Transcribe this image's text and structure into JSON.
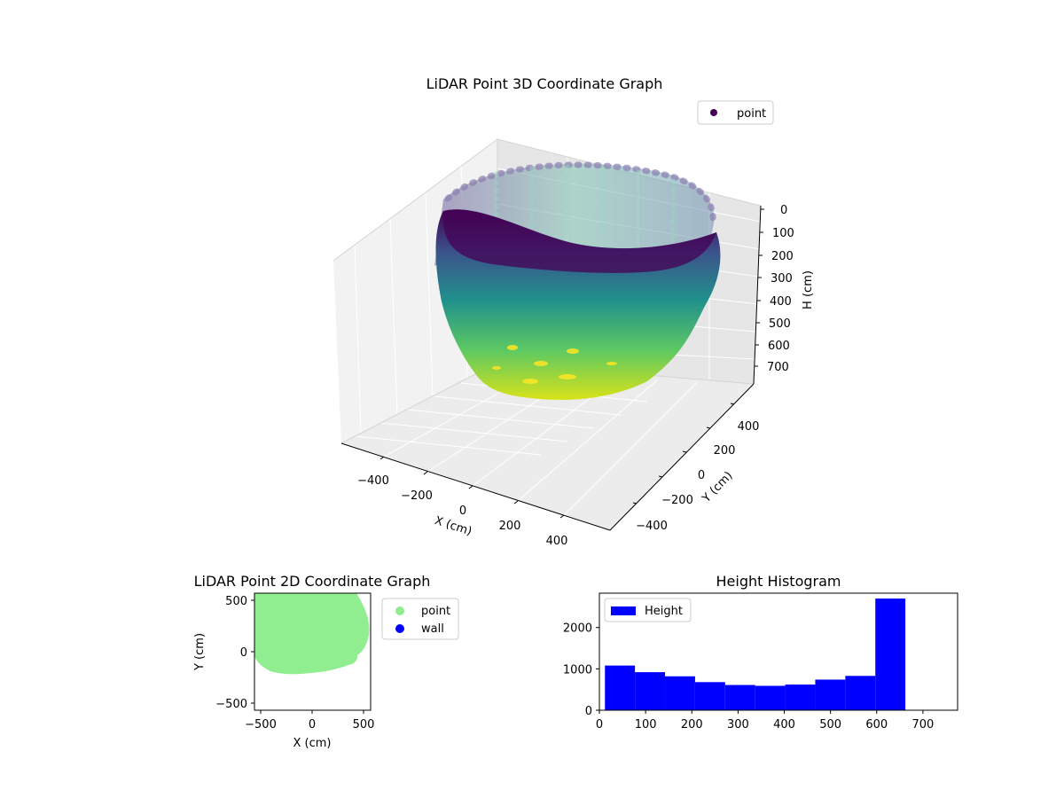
{
  "chart_data": [
    {
      "id": "scatter3d",
      "type": "scatter",
      "title": "LiDAR Point 3D Coordinate Graph",
      "xlabel": "X (cm)",
      "ylabel": "Y (cm)",
      "zlabel": "H (cm)",
      "xticks": [
        "−400",
        "−200",
        "0",
        "200",
        "400"
      ],
      "yticks": [
        "−400",
        "−200",
        "0",
        "200",
        "400"
      ],
      "zticks": [
        "0",
        "100",
        "200",
        "300",
        "400",
        "500",
        "600",
        "700"
      ],
      "xlim": [
        -550,
        550
      ],
      "ylim": [
        -550,
        550
      ],
      "zlim": [
        0,
        760
      ],
      "zinverted": true,
      "legend": [
        {
          "label": "point",
          "color": "#440154"
        }
      ],
      "legend_position": "upper right",
      "colormap": [
        "#440154",
        "#3b528b",
        "#21918c",
        "#5ec962",
        "#fde725"
      ],
      "shape": "bowl-shaped point cloud, rim radius about 450 cm at H 0, narrowing toward H about 740 cm"
    },
    {
      "id": "scatter2d",
      "type": "scatter",
      "title": "LiDAR Point 2D Coordinate Graph",
      "xlabel": "X (cm)",
      "ylabel": "Y (cm)",
      "xticks": [
        "−500",
        "0",
        "500"
      ],
      "yticks": [
        "−500",
        "0",
        "500"
      ],
      "xlim": [
        -560,
        560
      ],
      "ylim": [
        -560,
        560
      ],
      "series": [
        {
          "name": "point",
          "color": "#90ee90"
        },
        {
          "name": "wall",
          "color": "#0000ff"
        }
      ],
      "legend_position": "outside right"
    },
    {
      "id": "histogram",
      "type": "bar",
      "title": "Height Histogram",
      "xlabel": "",
      "ylabel": "",
      "bin_edges": [
        12,
        77,
        142,
        207,
        272,
        337,
        402,
        467,
        532,
        597,
        662
      ],
      "values": [
        1080,
        920,
        820,
        680,
        610,
        590,
        620,
        740,
        830,
        2700
      ],
      "xticks": [
        "0",
        "100",
        "200",
        "300",
        "400",
        "500",
        "600",
        "700"
      ],
      "yticks": [
        "0",
        "1000",
        "2000"
      ],
      "xlim": [
        0,
        775
      ],
      "ylim": [
        0,
        2830
      ],
      "legend": [
        {
          "label": "Height",
          "color": "#0000ff"
        }
      ],
      "legend_position": "upper left"
    }
  ]
}
